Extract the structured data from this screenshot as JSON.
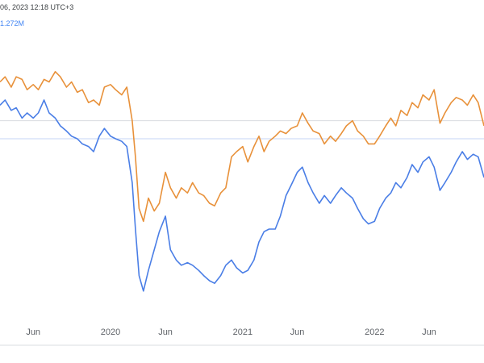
{
  "header": {
    "timestamp": "06, 2023 12:18 UTC+3",
    "volume": "1.272M"
  },
  "chart_data": {
    "type": "line",
    "title": "",
    "xlabel": "",
    "ylabel": "",
    "x_ticks": [
      "Jun",
      "2020",
      "Jun",
      "2021",
      "Jun",
      "2022",
      "Jun"
    ],
    "x_tick_dates": [
      "2019-06-01",
      "2020-01-01",
      "2020-06-01",
      "2021-01-01",
      "2021-06-01",
      "2022-01-01",
      "2022-06-01"
    ],
    "xlim": [
      "2019-03-01",
      "2022-10-31"
    ],
    "ylim": [
      0,
      100
    ],
    "reference_lines": [
      {
        "value": 72,
        "color": "#dadce0"
      },
      {
        "value": 65,
        "color": "#c6d4f5"
      }
    ],
    "grid": false,
    "legend": "none",
    "series": [
      {
        "color": "#e8913a",
        "points": [
          [
            "2019-03-01",
            87
          ],
          [
            "2019-03-15",
            89
          ],
          [
            "2019-04-01",
            85
          ],
          [
            "2019-04-15",
            89
          ],
          [
            "2019-05-01",
            88
          ],
          [
            "2019-05-15",
            84
          ],
          [
            "2019-06-01",
            86
          ],
          [
            "2019-06-15",
            84
          ],
          [
            "2019-07-01",
            88
          ],
          [
            "2019-07-15",
            87
          ],
          [
            "2019-08-01",
            91
          ],
          [
            "2019-08-15",
            89
          ],
          [
            "2019-09-01",
            85
          ],
          [
            "2019-09-15",
            87
          ],
          [
            "2019-10-01",
            83
          ],
          [
            "2019-10-15",
            84
          ],
          [
            "2019-11-01",
            79
          ],
          [
            "2019-11-15",
            80
          ],
          [
            "2019-12-01",
            78
          ],
          [
            "2019-12-15",
            85
          ],
          [
            "2020-01-01",
            86
          ],
          [
            "2020-01-15",
            84
          ],
          [
            "2020-02-01",
            82
          ],
          [
            "2020-02-15",
            85
          ],
          [
            "2020-03-01",
            72
          ],
          [
            "2020-03-10",
            58
          ],
          [
            "2020-03-20",
            38
          ],
          [
            "2020-04-01",
            33
          ],
          [
            "2020-04-15",
            42
          ],
          [
            "2020-05-01",
            37
          ],
          [
            "2020-05-15",
            40
          ],
          [
            "2020-06-01",
            52
          ],
          [
            "2020-06-15",
            46
          ],
          [
            "2020-07-01",
            42
          ],
          [
            "2020-07-15",
            46
          ],
          [
            "2020-08-01",
            44
          ],
          [
            "2020-08-15",
            48
          ],
          [
            "2020-09-01",
            44
          ],
          [
            "2020-09-15",
            43
          ],
          [
            "2020-10-01",
            40
          ],
          [
            "2020-10-15",
            39
          ],
          [
            "2020-11-01",
            44
          ],
          [
            "2020-11-15",
            46
          ],
          [
            "2020-12-01",
            58
          ],
          [
            "2020-12-15",
            60
          ],
          [
            "2021-01-01",
            62
          ],
          [
            "2021-01-15",
            56
          ],
          [
            "2021-02-01",
            62
          ],
          [
            "2021-02-15",
            66
          ],
          [
            "2021-03-01",
            60
          ],
          [
            "2021-03-15",
            64
          ],
          [
            "2021-04-01",
            66
          ],
          [
            "2021-04-15",
            68
          ],
          [
            "2021-05-01",
            67
          ],
          [
            "2021-05-15",
            69
          ],
          [
            "2021-06-01",
            70
          ],
          [
            "2021-06-15",
            75
          ],
          [
            "2021-07-01",
            71
          ],
          [
            "2021-07-15",
            68
          ],
          [
            "2021-08-01",
            67
          ],
          [
            "2021-08-15",
            63
          ],
          [
            "2021-09-01",
            66
          ],
          [
            "2021-09-15",
            64
          ],
          [
            "2021-10-01",
            67
          ],
          [
            "2021-10-15",
            70
          ],
          [
            "2021-11-01",
            72
          ],
          [
            "2021-11-15",
            68
          ],
          [
            "2021-12-01",
            66
          ],
          [
            "2021-12-15",
            63
          ],
          [
            "2022-01-01",
            63
          ],
          [
            "2022-01-15",
            66
          ],
          [
            "2022-02-01",
            70
          ],
          [
            "2022-02-15",
            73
          ],
          [
            "2022-03-01",
            70
          ],
          [
            "2022-03-15",
            76
          ],
          [
            "2022-04-01",
            74
          ],
          [
            "2022-04-15",
            79
          ],
          [
            "2022-05-01",
            77
          ],
          [
            "2022-05-15",
            82
          ],
          [
            "2022-06-01",
            80
          ],
          [
            "2022-06-15",
            84
          ],
          [
            "2022-07-01",
            71
          ],
          [
            "2022-07-15",
            75
          ],
          [
            "2022-08-01",
            79
          ],
          [
            "2022-08-15",
            81
          ],
          [
            "2022-09-01",
            80
          ],
          [
            "2022-09-15",
            78
          ],
          [
            "2022-10-01",
            82
          ],
          [
            "2022-10-15",
            79
          ],
          [
            "2022-10-31",
            70
          ]
        ]
      },
      {
        "color": "#4a7ee6",
        "points": [
          [
            "2019-03-01",
            78
          ],
          [
            "2019-03-15",
            80
          ],
          [
            "2019-04-01",
            76
          ],
          [
            "2019-04-15",
            77
          ],
          [
            "2019-05-01",
            73
          ],
          [
            "2019-05-15",
            75
          ],
          [
            "2019-06-01",
            73
          ],
          [
            "2019-06-15",
            75
          ],
          [
            "2019-07-01",
            80
          ],
          [
            "2019-07-15",
            75
          ],
          [
            "2019-08-01",
            73
          ],
          [
            "2019-08-15",
            70
          ],
          [
            "2019-09-01",
            68
          ],
          [
            "2019-09-15",
            66
          ],
          [
            "2019-10-01",
            65
          ],
          [
            "2019-10-15",
            63
          ],
          [
            "2019-11-01",
            62
          ],
          [
            "2019-11-15",
            60
          ],
          [
            "2019-12-01",
            66
          ],
          [
            "2019-12-15",
            69
          ],
          [
            "2020-01-01",
            66
          ],
          [
            "2020-01-15",
            65
          ],
          [
            "2020-02-01",
            64
          ],
          [
            "2020-02-15",
            62
          ],
          [
            "2020-03-01",
            48
          ],
          [
            "2020-03-10",
            30
          ],
          [
            "2020-03-20",
            12
          ],
          [
            "2020-04-01",
            6
          ],
          [
            "2020-04-15",
            14
          ],
          [
            "2020-05-01",
            22
          ],
          [
            "2020-05-15",
            29
          ],
          [
            "2020-06-01",
            35
          ],
          [
            "2020-06-15",
            22
          ],
          [
            "2020-07-01",
            18
          ],
          [
            "2020-07-15",
            16
          ],
          [
            "2020-08-01",
            17
          ],
          [
            "2020-08-15",
            16
          ],
          [
            "2020-09-01",
            14
          ],
          [
            "2020-09-15",
            12
          ],
          [
            "2020-10-01",
            10
          ],
          [
            "2020-10-15",
            9
          ],
          [
            "2020-11-01",
            12
          ],
          [
            "2020-11-15",
            16
          ],
          [
            "2020-12-01",
            18
          ],
          [
            "2020-12-15",
            15
          ],
          [
            "2021-01-01",
            13
          ],
          [
            "2021-01-15",
            14
          ],
          [
            "2021-02-01",
            18
          ],
          [
            "2021-02-15",
            25
          ],
          [
            "2021-03-01",
            29
          ],
          [
            "2021-03-15",
            30
          ],
          [
            "2021-04-01",
            30
          ],
          [
            "2021-04-15",
            35
          ],
          [
            "2021-05-01",
            43
          ],
          [
            "2021-05-15",
            47
          ],
          [
            "2021-06-01",
            52
          ],
          [
            "2021-06-15",
            54
          ],
          [
            "2021-07-01",
            48
          ],
          [
            "2021-07-15",
            44
          ],
          [
            "2021-08-01",
            40
          ],
          [
            "2021-08-15",
            43
          ],
          [
            "2021-09-01",
            40
          ],
          [
            "2021-09-15",
            43
          ],
          [
            "2021-10-01",
            46
          ],
          [
            "2021-10-15",
            44
          ],
          [
            "2021-11-01",
            42
          ],
          [
            "2021-11-15",
            38
          ],
          [
            "2021-12-01",
            34
          ],
          [
            "2021-12-15",
            32
          ],
          [
            "2022-01-01",
            33
          ],
          [
            "2022-01-15",
            38
          ],
          [
            "2022-02-01",
            42
          ],
          [
            "2022-02-15",
            44
          ],
          [
            "2022-03-01",
            48
          ],
          [
            "2022-03-15",
            46
          ],
          [
            "2022-04-01",
            50
          ],
          [
            "2022-04-15",
            55
          ],
          [
            "2022-05-01",
            52
          ],
          [
            "2022-05-15",
            56
          ],
          [
            "2022-06-01",
            58
          ],
          [
            "2022-06-15",
            54
          ],
          [
            "2022-07-01",
            45
          ],
          [
            "2022-07-15",
            48
          ],
          [
            "2022-08-01",
            52
          ],
          [
            "2022-08-15",
            56
          ],
          [
            "2022-09-01",
            60
          ],
          [
            "2022-09-15",
            57
          ],
          [
            "2022-10-01",
            59
          ],
          [
            "2022-10-15",
            58
          ],
          [
            "2022-10-31",
            50
          ]
        ]
      }
    ]
  }
}
